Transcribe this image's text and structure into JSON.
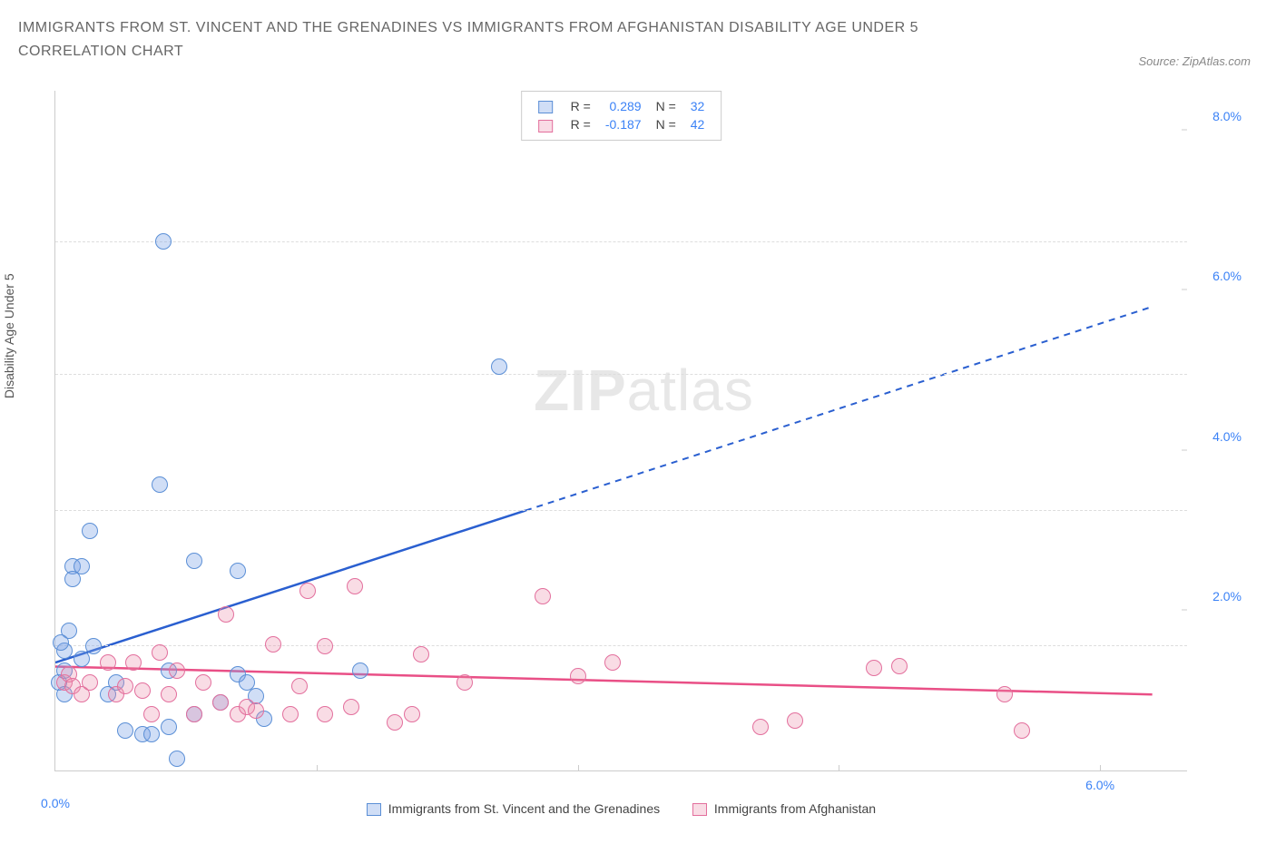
{
  "title_line1": "IMMIGRANTS FROM ST. VINCENT AND THE GRENADINES VS IMMIGRANTS FROM AFGHANISTAN DISABILITY AGE UNDER 5",
  "title_line2": "CORRELATION CHART",
  "source_prefix": "Source: ",
  "source_name": "ZipAtlas.com",
  "ylabel": "Disability Age Under 5",
  "watermark_bold": "ZIP",
  "watermark_light": "atlas",
  "chart": {
    "type": "scatter",
    "xlim": [
      0,
      6.5
    ],
    "ylim": [
      0,
      8.5
    ],
    "xticks": [
      {
        "v": 1.5
      },
      {
        "v": 3.0
      },
      {
        "v": 4.5
      },
      {
        "v": 6.0,
        "label": "6.0%"
      }
    ],
    "yticks_right": [
      {
        "v": 2.0,
        "label": "2.0%"
      },
      {
        "v": 4.0,
        "label": "4.0%"
      },
      {
        "v": 6.0,
        "label": "6.0%"
      },
      {
        "v": 8.0,
        "label": "8.0%"
      }
    ],
    "gridlines_y": [
      1.55,
      3.25,
      4.95,
      6.6
    ],
    "x_zero_label": "0.0%",
    "background_color": "#ffffff",
    "grid_color": "#dddddd",
    "series": [
      {
        "name": "Immigrants from St. Vincent and the Grenadines",
        "fill": "rgba(120,160,230,0.35)",
        "stroke": "#5b8fd6",
        "line_color": "#2a5fd0",
        "marker_radius": 9,
        "R": "0.289",
        "N": "32",
        "trend": {
          "x1": 0,
          "y1": 1.35,
          "x2_solid": 2.7,
          "y2_solid": 3.25,
          "x2": 6.3,
          "y2": 5.8
        },
        "points": [
          [
            0.02,
            1.1
          ],
          [
            0.05,
            1.25
          ],
          [
            0.05,
            1.5
          ],
          [
            0.08,
            1.75
          ],
          [
            0.1,
            2.55
          ],
          [
            0.1,
            2.4
          ],
          [
            0.15,
            2.55
          ],
          [
            0.15,
            1.4
          ],
          [
            0.2,
            3.0
          ],
          [
            0.22,
            1.55
          ],
          [
            0.35,
            1.1
          ],
          [
            0.3,
            0.95
          ],
          [
            0.4,
            0.5
          ],
          [
            0.5,
            0.45
          ],
          [
            0.55,
            0.45
          ],
          [
            0.6,
            3.58
          ],
          [
            0.62,
            6.62
          ],
          [
            0.65,
            0.55
          ],
          [
            0.65,
            1.25
          ],
          [
            0.7,
            0.15
          ],
          [
            0.8,
            2.62
          ],
          [
            0.8,
            0.7
          ],
          [
            0.95,
            0.85
          ],
          [
            1.05,
            2.5
          ],
          [
            1.05,
            1.2
          ],
          [
            1.15,
            0.93
          ],
          [
            1.1,
            1.1
          ],
          [
            1.2,
            0.65
          ],
          [
            1.75,
            1.25
          ],
          [
            2.55,
            5.05
          ],
          [
            0.05,
            0.95
          ],
          [
            0.03,
            1.6
          ]
        ]
      },
      {
        "name": "Immigrants from Afghanistan",
        "fill": "rgba(235,140,170,0.30)",
        "stroke": "#e36f9d",
        "line_color": "#e94f86",
        "marker_radius": 9,
        "R": "-0.187",
        "N": "42",
        "trend": {
          "x1": 0,
          "y1": 1.3,
          "x2_solid": 6.3,
          "y2_solid": 0.95,
          "x2": 6.3,
          "y2": 0.95
        },
        "points": [
          [
            0.05,
            1.1
          ],
          [
            0.08,
            1.2
          ],
          [
            0.1,
            1.05
          ],
          [
            0.15,
            0.95
          ],
          [
            0.2,
            1.1
          ],
          [
            0.3,
            1.35
          ],
          [
            0.35,
            0.95
          ],
          [
            0.4,
            1.05
          ],
          [
            0.45,
            1.35
          ],
          [
            0.5,
            1.0
          ],
          [
            0.55,
            0.7
          ],
          [
            0.6,
            1.48
          ],
          [
            0.65,
            0.95
          ],
          [
            0.7,
            1.25
          ],
          [
            0.8,
            0.7
          ],
          [
            0.85,
            1.1
          ],
          [
            0.95,
            0.85
          ],
          [
            0.98,
            1.95
          ],
          [
            1.05,
            0.7
          ],
          [
            1.1,
            0.8
          ],
          [
            1.15,
            0.75
          ],
          [
            1.25,
            1.58
          ],
          [
            1.35,
            0.7
          ],
          [
            1.4,
            1.05
          ],
          [
            1.45,
            2.25
          ],
          [
            1.55,
            1.55
          ],
          [
            1.55,
            0.7
          ],
          [
            1.7,
            0.8
          ],
          [
            1.72,
            2.3
          ],
          [
            1.95,
            0.6
          ],
          [
            2.05,
            0.7
          ],
          [
            2.1,
            1.45
          ],
          [
            2.35,
            1.1
          ],
          [
            2.8,
            2.18
          ],
          [
            3.0,
            1.18
          ],
          [
            3.2,
            1.35
          ],
          [
            4.05,
            0.55
          ],
          [
            4.25,
            0.62
          ],
          [
            4.7,
            1.28
          ],
          [
            4.85,
            1.3
          ],
          [
            5.45,
            0.95
          ],
          [
            5.55,
            0.5
          ]
        ]
      }
    ]
  },
  "legend_top": {
    "r_label": "R =",
    "n_label": "N ="
  }
}
